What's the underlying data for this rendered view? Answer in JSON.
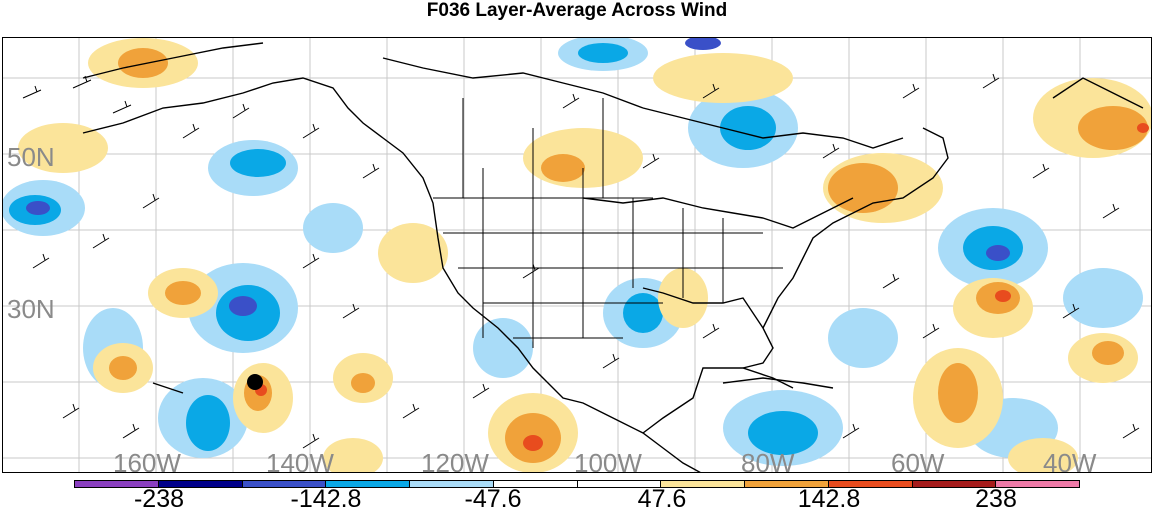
{
  "title": "F036 Layer-Average Across Wind",
  "map": {
    "latitude_labels": [
      "50N",
      "30N"
    ],
    "longitude_labels": [
      "160W",
      "140W",
      "120W",
      "100W",
      "80W",
      "60W",
      "40W"
    ],
    "storm_marker": "storm-center-dot"
  },
  "colorbar": {
    "labels": [
      "-238",
      "-142.8",
      "-47.6",
      "47.6",
      "142.8",
      "238"
    ],
    "colors": [
      "#8a3fc0",
      "#00008a",
      "#3a50c8",
      "#0aa8e6",
      "#a9dcf8",
      "#ffffff",
      "#ffffff",
      "#fbe49a",
      "#f0a23a",
      "#e84c1e",
      "#a51c1c",
      "#ee7aa8"
    ]
  }
}
